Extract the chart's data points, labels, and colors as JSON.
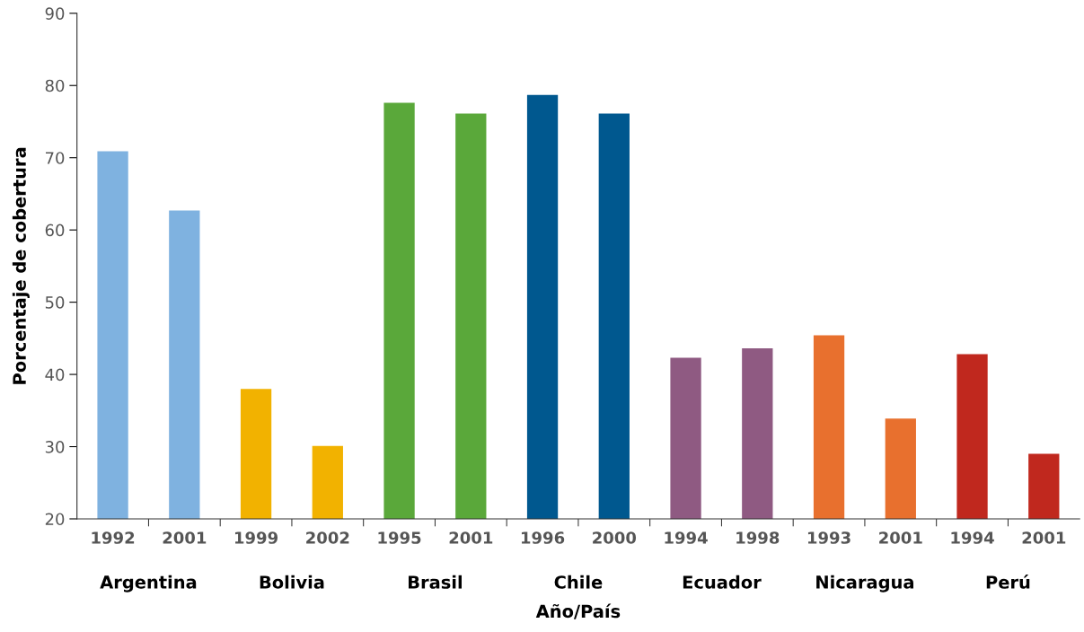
{
  "chart_data": {
    "type": "bar",
    "xlabel": "Año/País",
    "ylabel": "Porcentaje de cobertura",
    "categories": [
      "1992",
      "2001",
      "1999",
      "2002",
      "1995",
      "2001",
      "1996",
      "2000",
      "1994",
      "1998",
      "1993",
      "2001",
      "1994",
      "2001"
    ],
    "values": [
      70.9,
      62.7,
      38.0,
      30.1,
      77.6,
      76.1,
      78.7,
      76.1,
      42.3,
      43.6,
      45.4,
      33.9,
      42.8,
      29.0
    ],
    "colors": [
      "#7fb2e0",
      "#7fb2e0",
      "#f2b200",
      "#f2b200",
      "#5aa83a",
      "#5aa83a",
      "#00588f",
      "#00588f",
      "#8f5a82",
      "#8f5a82",
      "#e8702e",
      "#e8702e",
      "#c0281e",
      "#c0281e"
    ],
    "annotations": [
      "Argentina",
      "Bolivia",
      "Brasil",
      "Chile",
      "Ecuador",
      "Nicaragua",
      "Perú"
    ],
    "ylim": [
      20,
      90
    ],
    "yticks": [
      20,
      30,
      40,
      50,
      60,
      70,
      80,
      90
    ],
    "grid": false,
    "legend": false
  }
}
